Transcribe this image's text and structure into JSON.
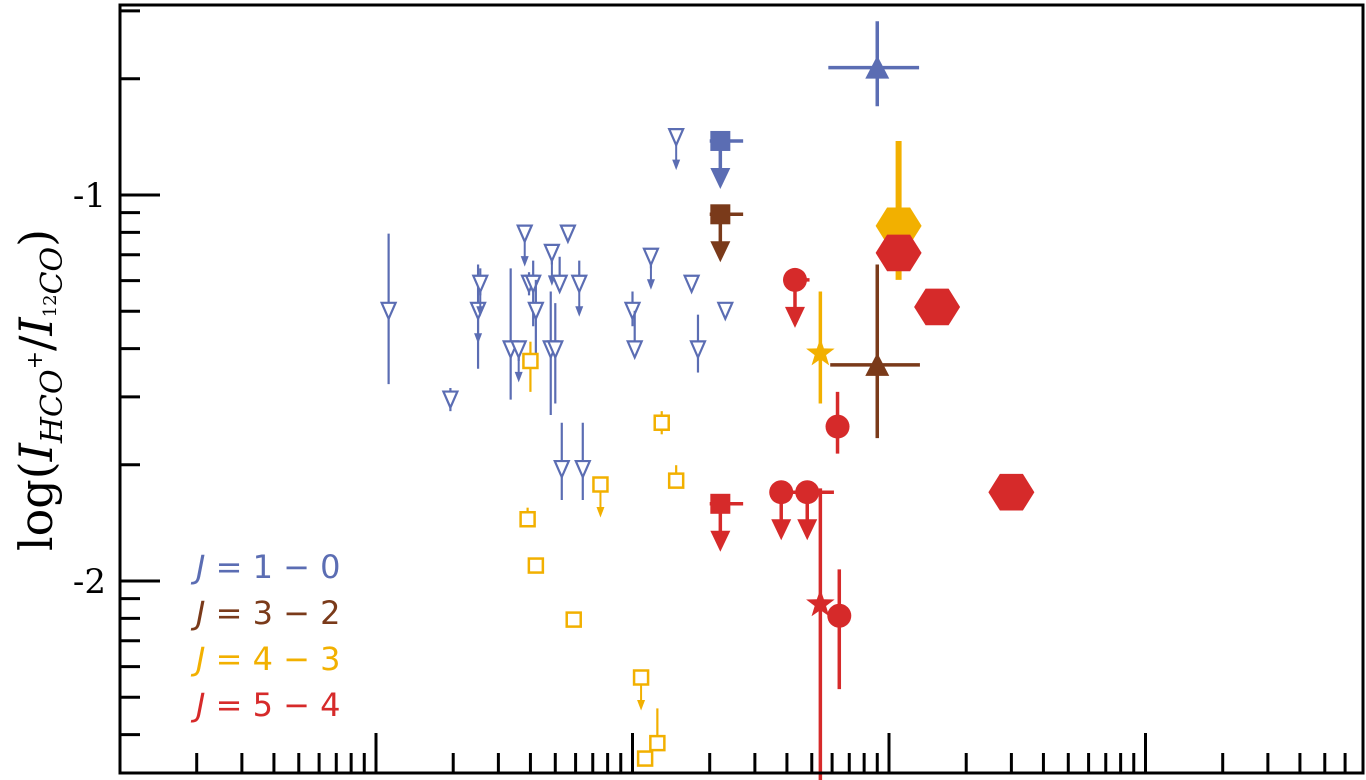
{
  "chart_data": {
    "type": "scatter",
    "title": "",
    "xlabel": "",
    "x_scale": "log",
    "x_axis_tick_labels_visible": false,
    "ylabel": "log(I_HCO+/I_12CO)",
    "ylabel_parts": {
      "prefix": "log(",
      "i1": "I",
      "sub1": "HCO",
      "sup1": "+",
      "slash": "/",
      "i2": "I",
      "sub2_sup": "12",
      "sub2": "CO",
      "suffix": ")"
    },
    "ylim": [
      -2.5,
      -0.53
    ],
    "yticks": [
      {
        "value": -1,
        "label": "-1"
      },
      {
        "value": -2,
        "label": "-2"
      }
    ],
    "legend_position": "bottom-left",
    "series": [
      {
        "name": "J = 1 − 0",
        "legend": {
          "j": "J",
          "rest": " = 1 − 0"
        },
        "color": "#5b6db3",
        "points": [
          {
            "x": 0.0112,
            "y": -1.3,
            "yerr": [
              0.19,
              0.2
            ],
            "marker": "triangle-down-open"
          },
          {
            "x": 0.0195,
            "y": -1.53,
            "yerr": [
              0.03,
              0.03
            ],
            "marker": "triangle-down-open"
          },
          {
            "x": 0.025,
            "y": -1.3,
            "yerr": [
              0.15,
              0.12
            ],
            "marker": "triangle-down-open",
            "upper_limit": true
          },
          {
            "x": 0.0255,
            "y": -1.23,
            "yerr": [
              0.03,
              0.04
            ],
            "marker": "triangle-down-open",
            "upper_limit": true
          },
          {
            "x": 0.0335,
            "y": -1.4,
            "yerr": [
              0.13,
              0.21
            ],
            "marker": "triangle-down-open"
          },
          {
            "x": 0.036,
            "y": -1.4,
            "yerr": [
              0.03,
              0.02
            ],
            "marker": "triangle-down-open",
            "upper_limit": true
          },
          {
            "x": 0.038,
            "y": -1.1,
            "yerr": [
              0.01,
              0.02
            ],
            "marker": "triangle-down-open",
            "upper_limit": true
          },
          {
            "x": 0.0395,
            "y": -1.23,
            "yerr": [
              0.03,
              0.03
            ],
            "marker": "triangle-down-open"
          },
          {
            "x": 0.041,
            "y": -1.23,
            "yerr": [
              0.11,
              0.06
            ],
            "marker": "triangle-down-open"
          },
          {
            "x": 0.042,
            "y": -1.3,
            "yerr": [
              0.12,
              0.08
            ],
            "marker": "triangle-down-open"
          },
          {
            "x": 0.048,
            "y": -1.4,
            "yerr": [
              0.17,
              0.15
            ],
            "marker": "triangle-down-open"
          },
          {
            "x": 0.0485,
            "y": -1.15,
            "yerr": [
              0.03,
              0.02
            ],
            "marker": "triangle-down-open",
            "upper_limit": true
          },
          {
            "x": 0.05,
            "y": -1.4,
            "yerr": [
              0.14,
              0.12
            ],
            "marker": "triangle-down-open"
          },
          {
            "x": 0.052,
            "y": -1.23,
            "yerr": [
              0.01,
              0.07
            ],
            "marker": "triangle-down-open"
          },
          {
            "x": 0.053,
            "y": -1.71,
            "yerr": [
              0.08,
              0.12
            ],
            "marker": "triangle-down-open"
          },
          {
            "x": 0.056,
            "y": -1.1,
            "yerr": [
              0.01,
              0.01
            ],
            "marker": "triangle-down-open"
          },
          {
            "x": 0.062,
            "y": -1.23,
            "yerr": [
              0.02,
              0.06
            ],
            "marker": "triangle-down-open",
            "upper_limit": true
          },
          {
            "x": 0.064,
            "y": -1.71,
            "yerr": [
              0.08,
              0.12
            ],
            "marker": "triangle-down-open"
          },
          {
            "x": 0.1,
            "y": -1.3,
            "yerr": [
              0.04,
              0.05
            ],
            "marker": "triangle-down-open"
          },
          {
            "x": 0.102,
            "y": -1.4,
            "yerr": [
              0.02,
              0.1
            ],
            "marker": "triangle-down-open"
          },
          {
            "x": 0.118,
            "y": -1.16,
            "yerr": [
              0.03,
              0.02
            ],
            "marker": "triangle-down-open",
            "upper_limit": true
          },
          {
            "x": 0.148,
            "y": -0.85,
            "yerr": [
              0.01,
              0.01
            ],
            "marker": "triangle-down-open",
            "upper_limit": true
          },
          {
            "x": 0.17,
            "y": -1.23,
            "marker": "triangle-down-open"
          },
          {
            "x": 0.18,
            "y": -1.4,
            "yerr": [
              0.06,
              0.09
            ],
            "marker": "triangle-down-open"
          },
          {
            "x": 0.23,
            "y": -1.3,
            "marker": "triangle-down-open"
          },
          {
            "x": 0.22,
            "y": -0.86,
            "xerr": [
              0.02,
              0.05
            ],
            "marker": "square-filled",
            "upper_limit": true
          },
          {
            "x": 0.9,
            "y": -0.67,
            "xerr": [
              0.32,
              0.41
            ],
            "yerr": [
              0.1,
              0.12
            ],
            "marker": "triangle-up-filled"
          }
        ]
      },
      {
        "name": "J = 3 − 2",
        "legend": {
          "j": "J",
          "rest": " = 3 − 2"
        },
        "color": "#7a3a1a",
        "points": [
          {
            "x": 0.22,
            "y": -1.05,
            "xerr": [
              0.02,
              0.05
            ],
            "marker": "square-filled",
            "upper_limit": true
          },
          {
            "x": 0.9,
            "y": -1.44,
            "xerr": [
              0.31,
              0.42
            ],
            "yerr": [
              0.19,
              0.26
            ],
            "marker": "triangle-up-filled"
          }
        ]
      },
      {
        "name": "J = 4 − 3",
        "legend": {
          "j": "J",
          "rest": " = 4 − 3"
        },
        "color": "#f2b000",
        "points": [
          {
            "x": 0.04,
            "y": -1.43,
            "yerr": [
              0.08,
              0.05
            ],
            "marker": "square-open"
          },
          {
            "x": 0.039,
            "y": -1.84,
            "yerr": [
              0.02,
              0.03
            ],
            "marker": "square-open"
          },
          {
            "x": 0.042,
            "y": -1.96,
            "yerr": [
              0.02,
              0.02
            ],
            "marker": "square-open"
          },
          {
            "x": 0.059,
            "y": -2.1,
            "yerr": [
              0.02,
              0.02
            ],
            "marker": "square-open"
          },
          {
            "x": 0.075,
            "y": -1.75,
            "marker": "square-open",
            "upper_limit": true
          },
          {
            "x": 0.108,
            "y": -2.25,
            "marker": "square-open",
            "upper_limit": true
          },
          {
            "x": 0.112,
            "y": -2.46,
            "marker": "square-open"
          },
          {
            "x": 0.125,
            "y": -2.42,
            "yerr": [
              0.02,
              0.09
            ],
            "marker": "square-open"
          },
          {
            "x": 0.13,
            "y": -1.59,
            "yerr": [
              0.03,
              0.03
            ],
            "marker": "square-open"
          },
          {
            "x": 0.148,
            "y": -1.74,
            "yerr": [
              0.02,
              0.04
            ],
            "marker": "square-open"
          },
          {
            "x": 0.54,
            "y": -1.41,
            "yerr": [
              0.13,
              0.16
            ],
            "marker": "star-filled"
          },
          {
            "x": 1.09,
            "y": -1.08,
            "yerr": [
              0.14,
              0.22
            ],
            "marker": "hexagon-filled"
          }
        ]
      },
      {
        "name": "J = 5 − 4",
        "legend": {
          "j": "J",
          "rest": " = 5 − 4"
        },
        "color": "#d62a2a",
        "points": [
          {
            "x": 0.22,
            "y": -1.8,
            "xerr": [
              0.02,
              0.05
            ],
            "marker": "square-filled",
            "upper_limit": true
          },
          {
            "x": 0.38,
            "y": -1.77,
            "xerr": [
              0.02,
              0.03
            ],
            "marker": "circle-filled",
            "upper_limit": true
          },
          {
            "x": 0.43,
            "y": -1.22,
            "xerr": [
              0.04,
              0.06
            ],
            "marker": "circle-filled",
            "upper_limit": true
          },
          {
            "x": 0.48,
            "y": -1.77,
            "xerr": [
              0.08,
              0.13
            ],
            "marker": "circle-filled",
            "upper_limit": true
          },
          {
            "x": 0.54,
            "y": -2.06,
            "yerr": [
              0.48,
              0.3
            ],
            "marker": "star-filled"
          },
          {
            "x": 0.63,
            "y": -1.6,
            "yerr": [
              0.07,
              0.09
            ],
            "marker": "circle-filled"
          },
          {
            "x": 0.64,
            "y": -2.09,
            "yerr": [
              0.19,
              0.12
            ],
            "marker": "circle-filled"
          },
          {
            "x": 1.09,
            "y": -1.15,
            "marker": "hexagon-filled"
          },
          {
            "x": 1.54,
            "y": -1.29,
            "marker": "hexagon-filled"
          },
          {
            "x": 3.0,
            "y": -1.77,
            "marker": "hexagon-filled"
          }
        ]
      }
    ]
  }
}
